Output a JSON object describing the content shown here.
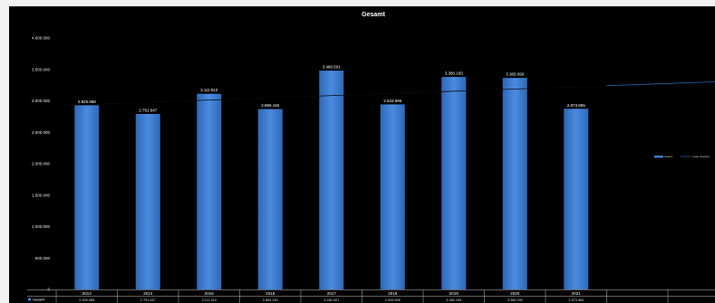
{
  "chart_data": {
    "type": "bar",
    "title": "Gesamt",
    "categories": [
      "2013",
      "2014",
      "2015",
      "2016",
      "2017",
      "2018",
      "2019",
      "2020",
      "2021"
    ],
    "series": [
      {
        "name": "Gesamt",
        "values": [
          2929988,
          2791647,
          3111910,
          2869150,
          3480501,
          2943696,
          3380169,
          3365090,
          2873865
        ],
        "labels": [
          "2.929.988",
          "2.791.647",
          "3.111.910",
          "2.869.150",
          "3.480.501",
          "2.943.696",
          "3.380.169",
          "3.365.090",
          "2.873.865"
        ],
        "table_labels": [
          "2.929.988",
          "2.791.647",
          "3.111.910",
          "2.869.150",
          "3.480.501",
          "2.943.696",
          "3.380.169",
          "3.365.090",
          "2.873.865"
        ]
      }
    ],
    "trendline": {
      "type": "linear",
      "legend_label": "Linear (Gesamt)"
    },
    "yticks": [
      0,
      500000,
      1000000,
      1500000,
      2000000,
      2500000,
      3000000,
      3500000,
      4000000
    ],
    "ytick_labels": [
      "0",
      "500.000",
      "1.000.000",
      "1.500.000",
      "2.000.000",
      "2.500.000",
      "3.000.000",
      "3.500.000",
      "4.000.000"
    ],
    "ylim": [
      0,
      4000000
    ],
    "grid": false,
    "legend_position": "right",
    "legend_entries": [
      "Gesamt",
      "Linear (Gesamt)"
    ],
    "data_table": true,
    "colors": {
      "bar": "#3f7fd6",
      "trend": "#000000",
      "trend_projection": "#2f6fc0",
      "background": "#000000"
    }
  }
}
